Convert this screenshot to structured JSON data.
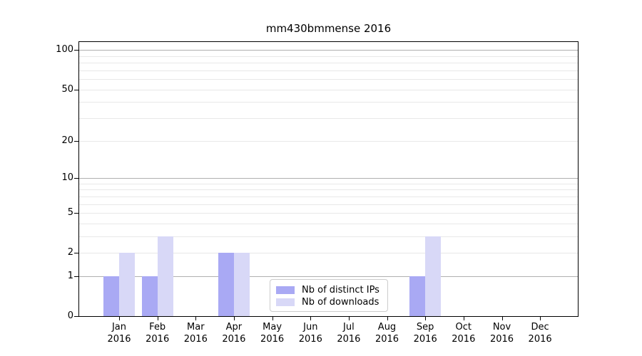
{
  "chart_data": {
    "type": "bar",
    "title": "mm430bmmense 2016",
    "year_label": "2016",
    "categories": [
      "Jan",
      "Feb",
      "Mar",
      "Apr",
      "May",
      "Jun",
      "Jul",
      "Aug",
      "Sep",
      "Oct",
      "Nov",
      "Dec"
    ],
    "series": [
      {
        "name": "Nb of distinct IPs",
        "color": "#a9a9f4",
        "values": [
          1,
          1,
          0,
          2,
          0,
          0,
          0,
          0,
          1,
          0,
          0,
          0
        ]
      },
      {
        "name": "Nb of downloads",
        "color": "#d8d8f7",
        "values": [
          2,
          3,
          0,
          2,
          0,
          0,
          0,
          0,
          3,
          0,
          0,
          0
        ]
      }
    ],
    "yaxis": {
      "scale": "log10(1+y)",
      "tick_values": [
        0,
        1,
        2,
        5,
        10,
        20,
        50,
        100
      ],
      "ylim": [
        0,
        115
      ],
      "major_gridlines": [
        1,
        10,
        100
      ],
      "minor_gridlines": [
        2,
        3,
        4,
        5,
        6,
        7,
        8,
        9,
        20,
        30,
        40,
        50,
        60,
        70,
        80,
        90
      ],
      "major_grid_color": "#b0b0b0",
      "minor_grid_color": "#e8e8e8"
    },
    "xlabel": "",
    "ylabel": "",
    "legend_position": "lower center",
    "grid": true,
    "spine_color": "#000000"
  }
}
